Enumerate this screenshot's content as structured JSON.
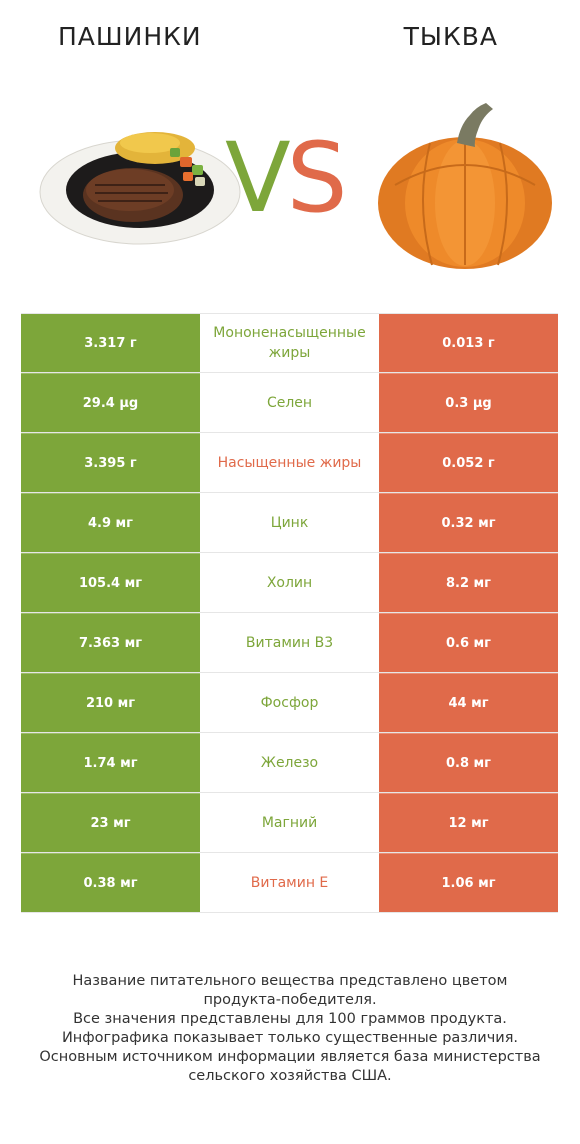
{
  "header": {
    "left_title": "ПАШИНКИ",
    "right_title": "ТЫКВА"
  },
  "vs": {
    "v": "V",
    "s": "S"
  },
  "colors": {
    "left": "#7da63a",
    "right": "#e06a4a"
  },
  "rows": [
    {
      "left": "3.317 г",
      "nutrient": "Мононенасыщенные жиры",
      "right": "0.013 г",
      "winner": "left"
    },
    {
      "left": "29.4 µg",
      "nutrient": "Селен",
      "right": "0.3 µg",
      "winner": "left"
    },
    {
      "left": "3.395 г",
      "nutrient": "Насыщенные жиры",
      "right": "0.052 г",
      "winner": "right"
    },
    {
      "left": "4.9 мг",
      "nutrient": "Цинк",
      "right": "0.32 мг",
      "winner": "left"
    },
    {
      "left": "105.4 мг",
      "nutrient": "Холин",
      "right": "8.2 мг",
      "winner": "left"
    },
    {
      "left": "7.363 мг",
      "nutrient": "Витамин B3",
      "right": "0.6 мг",
      "winner": "left"
    },
    {
      "left": "210 мг",
      "nutrient": "Фосфор",
      "right": "44 мг",
      "winner": "left"
    },
    {
      "left": "1.74 мг",
      "nutrient": "Железо",
      "right": "0.8 мг",
      "winner": "left"
    },
    {
      "left": "23 мг",
      "nutrient": "Магний",
      "right": "12 мг",
      "winner": "left"
    },
    {
      "left": "0.38 мг",
      "nutrient": "Витамин E",
      "right": "1.06 мг",
      "winner": "right"
    }
  ],
  "footer": {
    "line1": "Название питательного вещества представлено цветом",
    "line2": "продукта-победителя.",
    "line3": "Все значения представлены для 100 граммов продукта.",
    "line4": "Инфографика показывает только существенные различия.",
    "line5": "Основным источником информации является база министерства",
    "line6": "сельского хозяйства США."
  }
}
